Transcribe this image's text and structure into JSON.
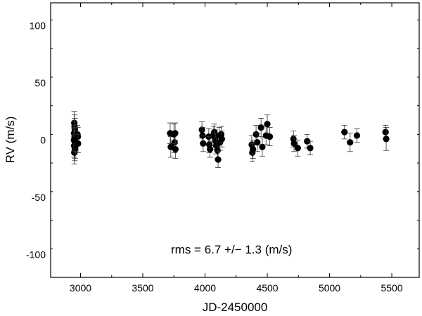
{
  "chart_data": {
    "type": "scatter",
    "title": "",
    "xlabel": "JD-2450000",
    "ylabel": "RV (m/s)",
    "xlim": [
      2760,
      5720
    ],
    "ylim": [
      -120,
      120
    ],
    "x_ticks": [
      3000,
      3500,
      4000,
      4500,
      5000,
      5500
    ],
    "y_ticks": [
      -100,
      -50,
      0,
      50,
      100
    ],
    "grid": false,
    "legend": "none",
    "marker_color": "#000000",
    "annotation": "rms = 6.7 +/− 1.3 (m/s)",
    "series": [
      {
        "points": [
          {
            "x": 2950,
            "y": 15,
            "err": 10
          },
          {
            "x": 2952,
            "y": 12,
            "err": 10
          },
          {
            "x": 2955,
            "y": 9,
            "err": 10
          },
          {
            "x": 2948,
            "y": 6,
            "err": 10
          },
          {
            "x": 2953,
            "y": 3,
            "err": 10
          },
          {
            "x": 2951,
            "y": 1,
            "err": 10
          },
          {
            "x": 2956,
            "y": -2,
            "err": 10
          },
          {
            "x": 2949,
            "y": -5,
            "err": 10
          },
          {
            "x": 2954,
            "y": -8,
            "err": 10
          },
          {
            "x": 2950,
            "y": -11,
            "err": 10
          },
          {
            "x": 2957,
            "y": -6,
            "err": 10
          },
          {
            "x": 2947,
            "y": 0,
            "err": 10
          },
          {
            "x": 2975,
            "y": 5,
            "err": 8
          },
          {
            "x": 2978,
            "y": 3,
            "err": 8
          },
          {
            "x": 2980,
            "y": -3,
            "err": 8
          },
          {
            "x": 3720,
            "y": 6,
            "err": 9
          },
          {
            "x": 3725,
            "y": -6,
            "err": 9
          },
          {
            "x": 3750,
            "y": 5,
            "err": 9
          },
          {
            "x": 3755,
            "y": -2,
            "err": 9
          },
          {
            "x": 3760,
            "y": 6,
            "err": 9
          },
          {
            "x": 3762,
            "y": -8,
            "err": 8
          },
          {
            "x": 3975,
            "y": 9,
            "err": 7
          },
          {
            "x": 3980,
            "y": 4,
            "err": 7
          },
          {
            "x": 3985,
            "y": -3,
            "err": 7
          },
          {
            "x": 4030,
            "y": 3,
            "err": 7
          },
          {
            "x": 4035,
            "y": -4,
            "err": 7
          },
          {
            "x": 4040,
            "y": -8,
            "err": 7
          },
          {
            "x": 4070,
            "y": 5,
            "err": 7
          },
          {
            "x": 4075,
            "y": 7,
            "err": 7
          },
          {
            "x": 4080,
            "y": 2,
            "err": 7
          },
          {
            "x": 4085,
            "y": -1,
            "err": 7
          },
          {
            "x": 4090,
            "y": -5,
            "err": 7
          },
          {
            "x": 4100,
            "y": -9,
            "err": 7
          },
          {
            "x": 4105,
            "y": -17,
            "err": 7
          },
          {
            "x": 4115,
            "y": 4,
            "err": 7
          },
          {
            "x": 4120,
            "y": -2,
            "err": 7
          },
          {
            "x": 4130,
            "y": 5,
            "err": 7
          },
          {
            "x": 4135,
            "y": 1,
            "err": 7
          },
          {
            "x": 4375,
            "y": -4,
            "err": 8
          },
          {
            "x": 4380,
            "y": -11,
            "err": 8
          },
          {
            "x": 4385,
            "y": -8,
            "err": 8
          },
          {
            "x": 4410,
            "y": 5,
            "err": 8
          },
          {
            "x": 4420,
            "y": -2,
            "err": 8
          },
          {
            "x": 4450,
            "y": 11,
            "err": 8
          },
          {
            "x": 4460,
            "y": -6,
            "err": 8
          },
          {
            "x": 4490,
            "y": 4,
            "err": 8
          },
          {
            "x": 4500,
            "y": 14,
            "err": 8
          },
          {
            "x": 4520,
            "y": 3,
            "err": 8
          },
          {
            "x": 4710,
            "y": 1,
            "err": 7
          },
          {
            "x": 4715,
            "y": -3,
            "err": 7
          },
          {
            "x": 4745,
            "y": -7,
            "err": 7
          },
          {
            "x": 4820,
            "y": -1,
            "err": 6
          },
          {
            "x": 4845,
            "y": -7,
            "err": 6
          },
          {
            "x": 5120,
            "y": 7,
            "err": 6
          },
          {
            "x": 5165,
            "y": -2,
            "err": 8
          },
          {
            "x": 5220,
            "y": 4,
            "err": 6
          },
          {
            "x": 5450,
            "y": 7,
            "err": 6
          },
          {
            "x": 5455,
            "y": 1,
            "err": 10
          }
        ]
      }
    ]
  }
}
